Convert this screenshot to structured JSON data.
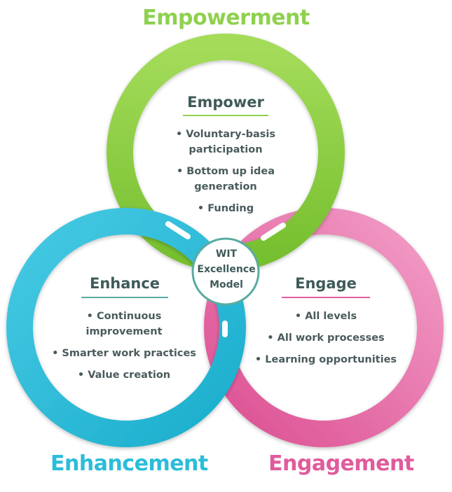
{
  "outer_labels": {
    "top": "Empowerment",
    "left": "Enhancement",
    "right": "Engagement"
  },
  "center": {
    "lines": [
      "WIT",
      "Excellence",
      "Model"
    ]
  },
  "circles": {
    "empower": {
      "heading": "Empower",
      "items": [
        "Voluntary-basis participation",
        "Bottom up idea generation",
        "Funding"
      ]
    },
    "enhance": {
      "heading": "Enhance",
      "items": [
        "Continuous improvement",
        "Smarter work practices",
        "Value creation"
      ]
    },
    "engage": {
      "heading": "Engage",
      "items": [
        "All levels",
        "All work processes",
        "Learning opportunities"
      ]
    }
  },
  "colors": {
    "green": "#8fd14f",
    "blue": "#2bbdd9",
    "pink": "#e05c9c",
    "teal_rule": "#5aaba0",
    "text": "#3f5b5a"
  }
}
